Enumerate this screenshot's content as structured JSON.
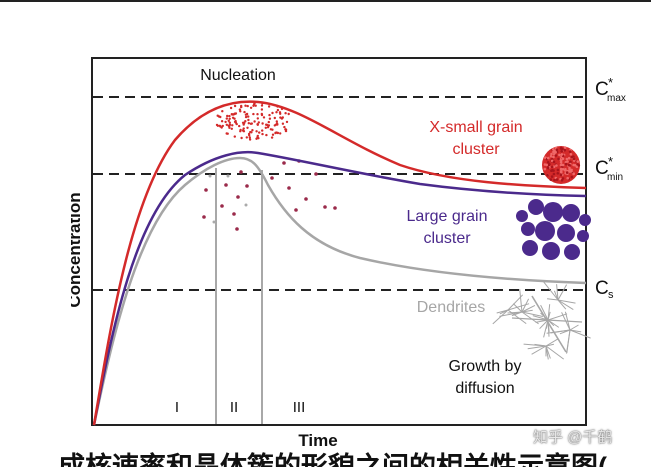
{
  "figure": {
    "y_axis_label": "Concentration",
    "x_axis_label": "Time",
    "levels": [
      {
        "symbol": "C",
        "sup": "*",
        "sub": "max"
      },
      {
        "symbol": "C",
        "sup": "*",
        "sub": "min"
      },
      {
        "symbol": "C",
        "sub": "s"
      }
    ],
    "labels": {
      "nucleation": "Nucleation",
      "x_small_grain": {
        "line1": "X-small grain",
        "line2": "cluster"
      },
      "large_grain": {
        "line1": "Large grain",
        "line2": "cluster"
      },
      "dendrites": "Dendrites",
      "growth": {
        "line1": "Growth by",
        "line2": "diffusion"
      }
    },
    "stages": [
      "I",
      "II",
      "III"
    ],
    "colors": {
      "x_small_grain": "#d42a2a",
      "large_grain": "#4b2a8c",
      "dendrites": "#a6a6a6",
      "axes": "#222222",
      "text": "#111111"
    }
  },
  "caption": "成核速率和晶体簇的形貌之间的相关性示意图(",
  "watermark": "知乎 @千鹤"
}
